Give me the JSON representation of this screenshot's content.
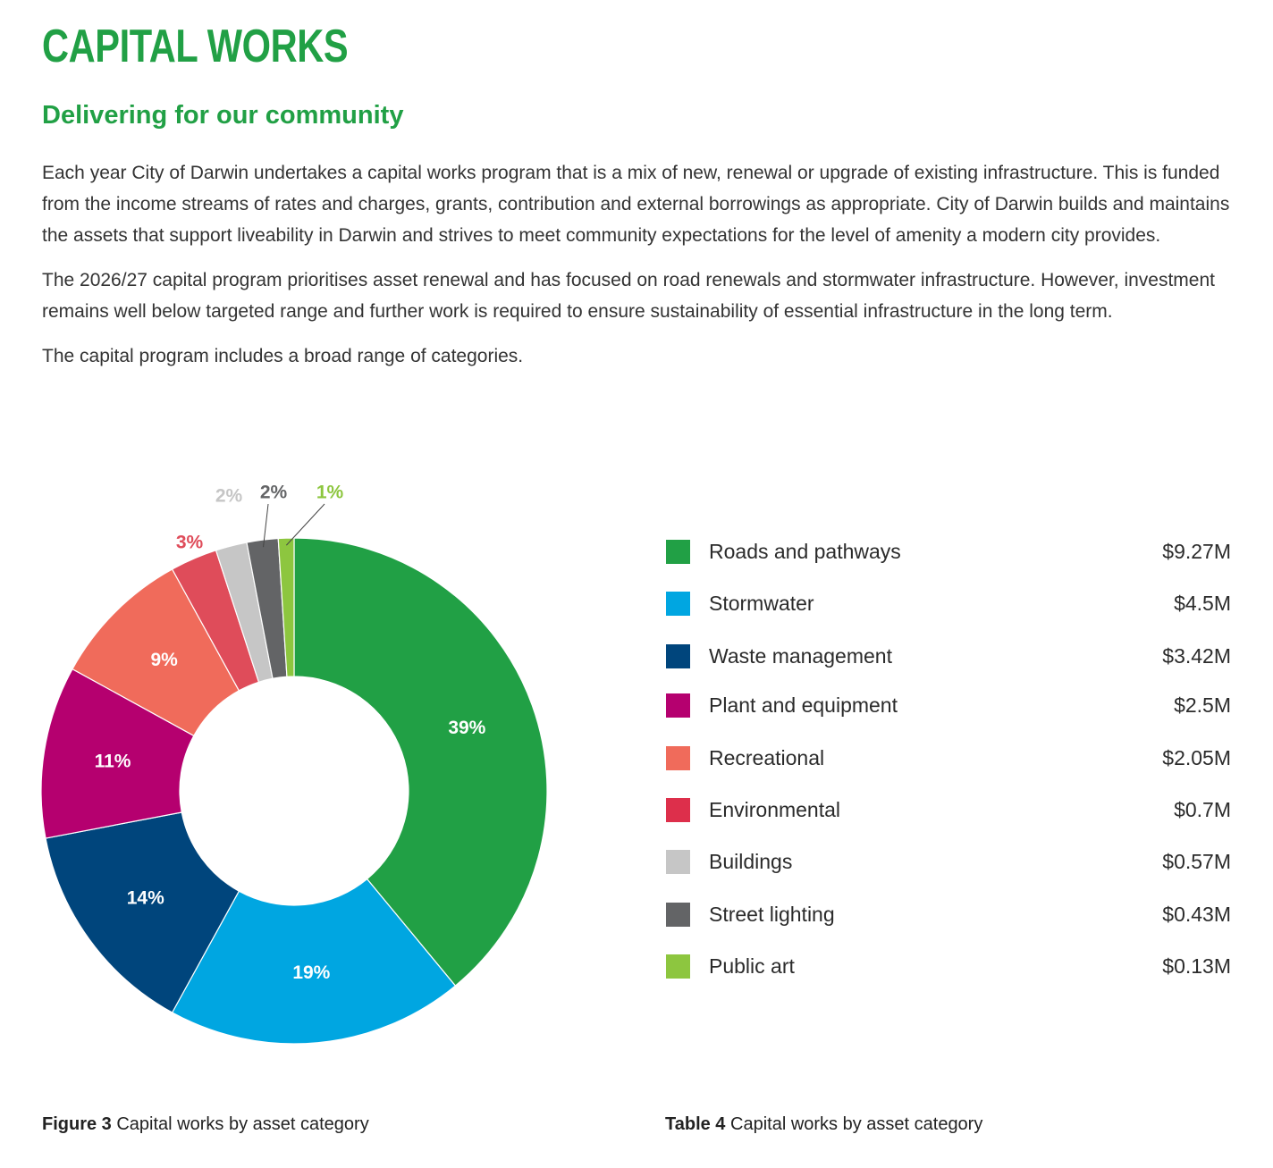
{
  "header": {
    "title": "CAPITAL WORKS",
    "subtitle": "Delivering for our community"
  },
  "paragraphs": [
    "Each year City of Darwin undertakes a capital works program that is a mix of new, renewal or upgrade of existing infrastructure. This is funded from the income streams of rates and charges, grants, contribution and external borrowings as appropriate. City of Darwin builds and maintains the assets that support liveability in Darwin and strives to meet community expectations for the level of amenity a modern city provides.",
    "The 2026/27 capital program prioritises asset renewal and has focused on road renewals and stormwater infrastructure. However, investment remains well below targeted range and further work is required to ensure sustainability of essential infrastructure in the long term.",
    "The capital program includes a broad range of categories."
  ],
  "chart_data": {
    "type": "donut",
    "values": [
      39,
      19,
      14,
      11,
      9,
      3,
      2,
      2,
      1
    ],
    "value_labels": [
      "39%",
      "19%",
      "14%",
      "11%",
      "9%",
      "3%",
      "2%",
      "2%",
      "1%"
    ],
    "colors": [
      "#21a045",
      "#00a6e1",
      "#00457c",
      "#b5006f",
      "#f06b5b",
      "#df4c5a",
      "#c6c6c6",
      "#636466",
      "#8dc63f"
    ]
  },
  "figure_caption": {
    "label": "Figure 3",
    "text": "Capital works by asset category"
  },
  "table": {
    "rows": [
      [
        "Roads and pathways",
        "$9.27M"
      ],
      [
        "Stormwater",
        "$4.5M"
      ],
      [
        "Waste management",
        "$3.42M"
      ],
      [
        "Plant and equipment",
        "$2.5M"
      ],
      [
        "Recreational",
        "$2.05M"
      ],
      [
        "Environmental",
        "$0.7M"
      ],
      [
        "Buildings",
        "$0.57M"
      ],
      [
        "Street lighting",
        "$0.43M"
      ],
      [
        "Public art",
        "$0.13M"
      ]
    ],
    "colors": [
      "#21a045",
      "#00a6e1",
      "#00457c",
      "#b5006f",
      "#f06b5b",
      "#dd2f4b",
      "#c6c6c6",
      "#636466",
      "#8dc63f"
    ]
  },
  "table_caption": {
    "label": "Table 4",
    "text": "Capital works by asset category"
  }
}
